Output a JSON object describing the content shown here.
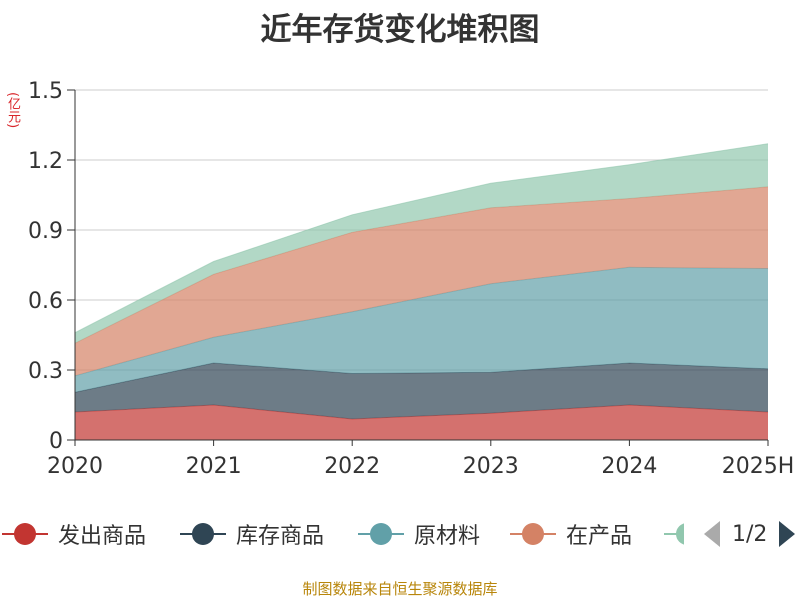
{
  "title": "近年存货变化堆积图",
  "unit_label": "(亿元)",
  "source": "制图数据来自恒生聚源数据库",
  "legend_pager": {
    "text": "1/2"
  },
  "chart_data": {
    "type": "area",
    "stacked": true,
    "title": "近年存货变化堆积图",
    "ylabel": "(亿元)",
    "x": [
      "2020",
      "2021",
      "2022",
      "2023",
      "2024",
      "2025H"
    ],
    "ylim": [
      0,
      1.5
    ],
    "yticks": [
      "0",
      "0.3",
      "0.6",
      "0.9",
      "1.2",
      "1.5"
    ],
    "grid": true,
    "legend_position": "bottom",
    "series": [
      {
        "name": "发出商品",
        "color": "#c23531",
        "values": [
          0.12,
          0.15,
          0.09,
          0.115,
          0.15,
          0.12
        ]
      },
      {
        "name": "库存商品",
        "color": "#2f4554",
        "values": [
          0.085,
          0.18,
          0.195,
          0.175,
          0.18,
          0.185
        ]
      },
      {
        "name": "原材料",
        "color": "#61a0a8",
        "values": [
          0.07,
          0.11,
          0.265,
          0.38,
          0.41,
          0.43
        ]
      },
      {
        "name": "在产品",
        "color": "#d48265",
        "values": [
          0.14,
          0.27,
          0.34,
          0.325,
          0.295,
          0.35
        ]
      },
      {
        "name": "",
        "color": "#91c7ae",
        "values": [
          0.045,
          0.055,
          0.075,
          0.105,
          0.145,
          0.185
        ]
      }
    ],
    "legend_visible": [
      "发出商品",
      "库存商品",
      "原材料",
      "在产品"
    ]
  }
}
